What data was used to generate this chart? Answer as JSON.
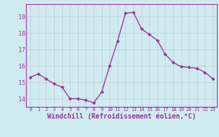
{
  "x": [
    0,
    1,
    2,
    3,
    4,
    5,
    6,
    7,
    8,
    9,
    10,
    11,
    12,
    13,
    14,
    15,
    16,
    17,
    18,
    19,
    20,
    21,
    22,
    23
  ],
  "y": [
    15.3,
    15.5,
    15.2,
    14.9,
    14.7,
    14.0,
    14.0,
    13.9,
    13.75,
    14.4,
    16.0,
    17.5,
    19.2,
    19.25,
    18.25,
    17.9,
    17.55,
    16.7,
    16.2,
    15.95,
    15.9,
    15.85,
    15.6,
    15.2
  ],
  "line_color": "#993399",
  "marker": "D",
  "marker_size": 2.2,
  "linewidth": 1.0,
  "xlabel": "Windchill (Refroidissement éolien,°C)",
  "xlabel_fontsize": 7.0,
  "ylim": [
    13.5,
    19.75
  ],
  "yticks": [
    14,
    15,
    16,
    17,
    18,
    19
  ],
  "xticks": [
    0,
    1,
    2,
    3,
    4,
    5,
    6,
    7,
    8,
    9,
    10,
    11,
    12,
    13,
    14,
    15,
    16,
    17,
    18,
    19,
    20,
    21,
    22,
    23
  ],
  "background_color": "#d0eaf2",
  "grid_color": "#bbcccc",
  "tick_color": "#993399",
  "tick_fontsize": 6.0,
  "xtick_fontsize": 5.2,
  "spine_color": "#993399"
}
